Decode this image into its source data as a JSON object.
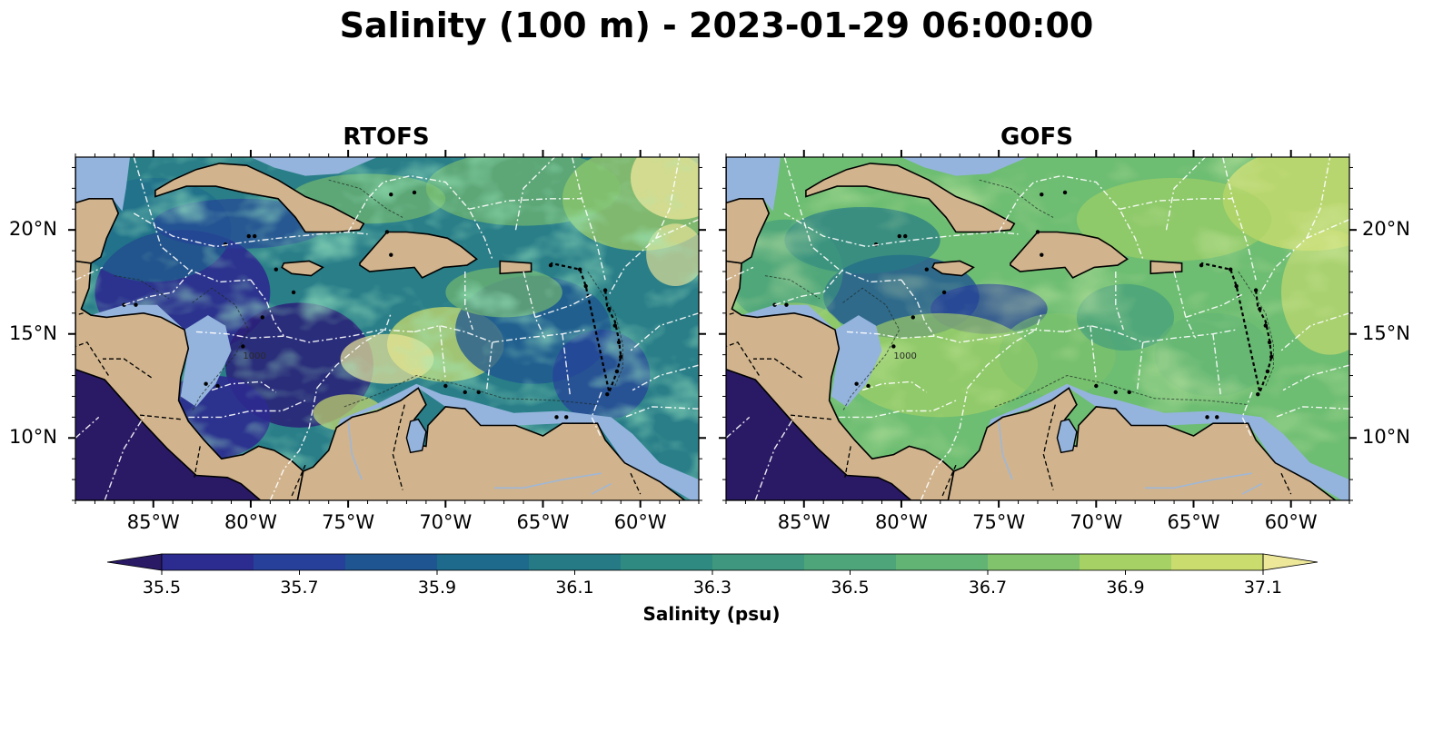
{
  "figure": {
    "title": "Salinity (100 m) - 2023-01-29 06:00:00"
  },
  "panels": [
    {
      "title": "RTOFS"
    },
    {
      "title": "GOFS"
    }
  ],
  "map_extent": {
    "lon": [
      -89.0,
      -57.0
    ],
    "lat": [
      7.0,
      23.5
    ]
  },
  "longitude_ticks": [
    "85°W",
    "80°W",
    "75°W",
    "70°W",
    "65°W",
    "60°W"
  ],
  "latitude_ticks": [
    "20°N",
    "15°N",
    "10°N"
  ],
  "contour_labels": [
    "1000"
  ],
  "colorbar": {
    "label": "Salinity (psu)",
    "tick_labels": [
      "35.5",
      "35.7",
      "35.9",
      "36.1",
      "36.3",
      "36.5",
      "36.7",
      "36.9",
      "37.1"
    ],
    "min": 35.4,
    "max": 37.2,
    "extend": "both",
    "colors": [
      "#2a1a66",
      "#2c2b8f",
      "#27409a",
      "#1f5591",
      "#1d6a8c",
      "#257a86",
      "#2f8a82",
      "#3e977e",
      "#4ea57a",
      "#62b474",
      "#80c36c",
      "#a5d165",
      "#cadc6e",
      "#ede79a"
    ]
  },
  "colors": {
    "land": "#d1b48d",
    "shelf": "#94b4dd",
    "pacific": "#2a1a66",
    "coast": "#000000",
    "eez": "#ffffff"
  }
}
